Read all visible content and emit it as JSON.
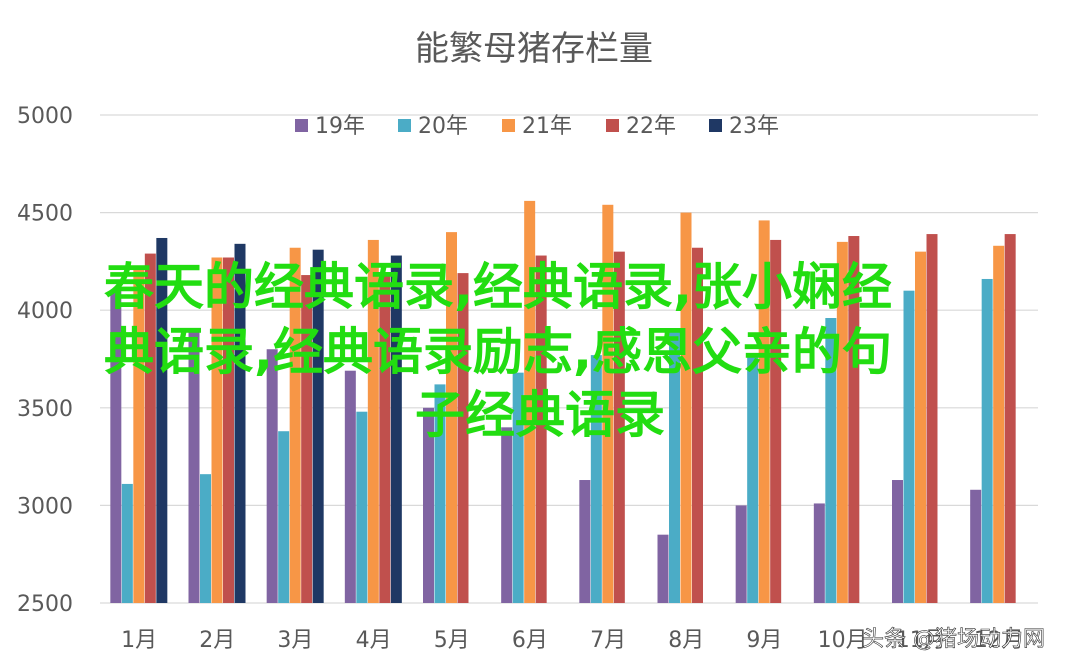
{
  "chart_data": {
    "type": "bar",
    "title": "能繁母猪存栏量",
    "xlabel": "",
    "ylabel": "",
    "ylim": [
      2500,
      5000
    ],
    "yticks": [
      "2500",
      "3000",
      "3500",
      "4000",
      "4500",
      "5000"
    ],
    "categories": [
      "1月",
      "2月",
      "3月",
      "4月",
      "5月",
      "6月",
      "7月",
      "8月",
      "9月",
      "10月",
      "11月",
      "12月"
    ],
    "grid": true,
    "legend_position": "top",
    "series": [
      {
        "name": "19年",
        "color": "#8064a2",
        "values": [
          4100,
          3900,
          3800,
          3690,
          3500,
          3400,
          3130,
          2850,
          3000,
          3010,
          3130,
          3080
        ]
      },
      {
        "name": "20年",
        "color": "#4bacc6",
        "values": [
          3110,
          3160,
          3380,
          3480,
          3620,
          3680,
          3770,
          3900,
          3780,
          3960,
          4100,
          4160
        ]
      },
      {
        "name": "21年",
        "color": "#f79646",
        "values": [
          4210,
          4270,
          4320,
          4360,
          4400,
          4560,
          4540,
          4500,
          4460,
          4350,
          4300,
          4330
        ]
      },
      {
        "name": "22年",
        "color": "#c0504d",
        "values": [
          4290,
          4270,
          4180,
          4180,
          4190,
          4280,
          4300,
          4320,
          4360,
          4380,
          4390,
          4390
        ]
      },
      {
        "name": "23年",
        "color": "#1f3864",
        "values": [
          4370,
          4340,
          4310,
          4280,
          null,
          null,
          null,
          null,
          null,
          null,
          null,
          null
        ]
      }
    ]
  },
  "overlay": {
    "line1": "春天的经典语录,经典语录,张小娴经",
    "line2": "典语录,经典语录励志,感恩父亲的句",
    "line3": "子经典语录",
    "color": "#22dd11"
  },
  "watermark": {
    "text": "头条 @猪场动力网"
  }
}
